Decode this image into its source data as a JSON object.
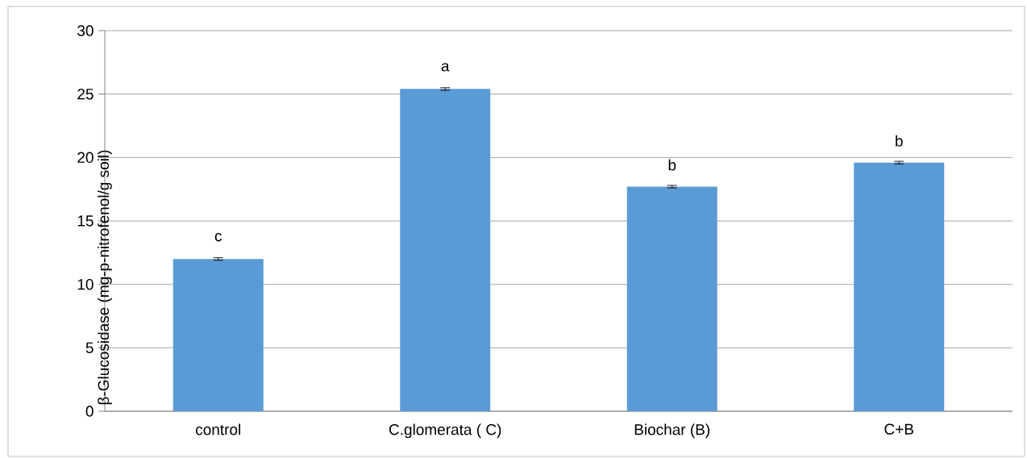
{
  "chart_data": {
    "type": "bar",
    "ylabel": "β-Glucosidase (mg-p-nitrofenol/g soil)",
    "categories": [
      "control",
      "C.glomerata ( C)",
      "Biochar (B)",
      "C+B"
    ],
    "values": [
      12.0,
      25.4,
      17.7,
      19.6
    ],
    "errors": [
      0.1,
      0.1,
      0.1,
      0.1
    ],
    "color": "#5b9bd5",
    "ylim": [
      0,
      30
    ],
    "yticks": [
      0,
      5,
      10,
      15,
      20,
      25,
      30
    ],
    "grid": "y",
    "annotations": [
      "c",
      "a",
      "b",
      "b"
    ]
  }
}
